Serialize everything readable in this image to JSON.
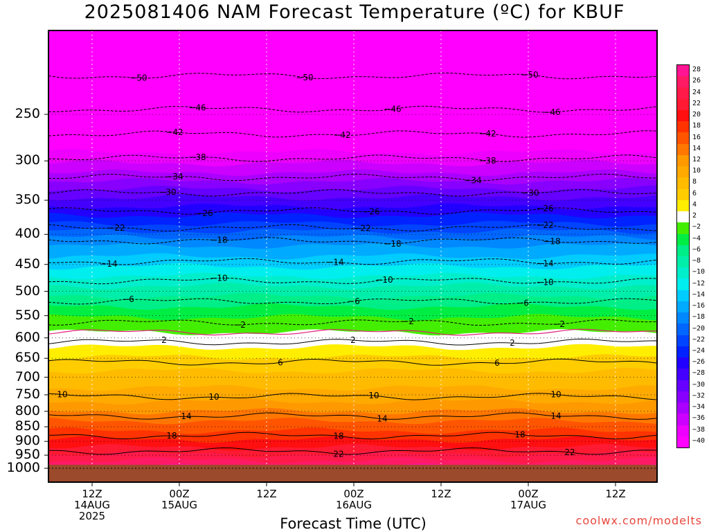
{
  "header": {
    "title": "2025081406 NAM Forecast Temperature (ºC) for KBUF"
  },
  "footer": {
    "xlabel": "Forecast Time (UTC)",
    "credit": "coolwx.com/modelts"
  },
  "colors": {
    "ground": "#9b4a2c",
    "freezing_line": "#e0207a"
  },
  "chart_data": {
    "type": "contour",
    "title": "2025081406 NAM Forecast Temperature (ºC) for KBUF",
    "xlabel": "Forecast Time (UTC)",
    "ylabel": "",
    "y_axis": {
      "scale": "pressure-log",
      "inverted": true,
      "ylim": [
        1000,
        180
      ],
      "ticks": [
        250,
        300,
        350,
        400,
        450,
        500,
        550,
        600,
        650,
        700,
        750,
        800,
        850,
        900,
        950,
        1000
      ]
    },
    "x_axis": {
      "ticks": [
        {
          "label": "12Z",
          "sub": [
            "14AUG",
            "2025"
          ]
        },
        {
          "label": "00Z",
          "sub": [
            "15AUG"
          ]
        },
        {
          "label": "12Z",
          "sub": []
        },
        {
          "label": "00Z",
          "sub": [
            "16AUG"
          ]
        },
        {
          "label": "12Z",
          "sub": []
        },
        {
          "label": "00Z",
          "sub": [
            "17AUG"
          ]
        },
        {
          "label": "12Z",
          "sub": []
        }
      ]
    },
    "grid": true,
    "colorbar": {
      "placement": "right",
      "labels": [
        28,
        26,
        24,
        22,
        20,
        18,
        16,
        14,
        12,
        10,
        8,
        6,
        4,
        2,
        -2,
        -4,
        -6,
        -8,
        -10,
        -12,
        -14,
        -16,
        -18,
        -20,
        -22,
        -24,
        -26,
        -28,
        -30,
        -32,
        -34,
        -36,
        -38,
        -40
      ],
      "colors": [
        "#ff1493",
        "#ff1a66",
        "#ff1a4a",
        "#ff1a33",
        "#ff0f0f",
        "#ff3300",
        "#ff5500",
        "#ff7700",
        "#ff9900",
        "#ffaa00",
        "#ffbb00",
        "#ffcc00",
        "#ffee00",
        "#ffffff",
        "#44ee00",
        "#00ee44",
        "#00ee88",
        "#00eeaa",
        "#00eecc",
        "#00eeee",
        "#00ccff",
        "#00aaff",
        "#0088ff",
        "#0066ff",
        "#0044ff",
        "#0022ff",
        "#2200ff",
        "#4400ff",
        "#6600ff",
        "#8800ff",
        "#aa00ff",
        "#cc00ff",
        "#ee00ff",
        "#ff00ff"
      ]
    },
    "isotherms": [
      {
        "temp": -50,
        "pressure": 215
      },
      {
        "temp": -46,
        "pressure": 245
      },
      {
        "temp": -42,
        "pressure": 270
      },
      {
        "temp": -38,
        "pressure": 297
      },
      {
        "temp": -34,
        "pressure": 320
      },
      {
        "temp": -30,
        "pressure": 340
      },
      {
        "temp": -26,
        "pressure": 365
      },
      {
        "temp": -22,
        "pressure": 390
      },
      {
        "temp": -18,
        "pressure": 410
      },
      {
        "temp": -14,
        "pressure": 445
      },
      {
        "temp": -10,
        "pressure": 480
      },
      {
        "temp": -6,
        "pressure": 520
      },
      {
        "temp": -2,
        "pressure": 565
      },
      {
        "temp": 2,
        "pressure": 610
      },
      {
        "temp": 6,
        "pressure": 660
      },
      {
        "temp": 10,
        "pressure": 755
      },
      {
        "temp": 14,
        "pressure": 815
      },
      {
        "temp": 18,
        "pressure": 880
      },
      {
        "temp": 22,
        "pressure": 935
      }
    ],
    "contour_labels": [
      {
        "text": "50",
        "neg": true
      },
      {
        "text": "46",
        "neg": true
      },
      {
        "text": "42",
        "neg": true
      },
      {
        "text": "38",
        "neg": true
      },
      {
        "text": "34",
        "neg": true
      },
      {
        "text": "30",
        "neg": true
      },
      {
        "text": "26",
        "neg": true
      },
      {
        "text": "22",
        "neg": true
      },
      {
        "text": "18",
        "neg": true
      },
      {
        "text": "14",
        "neg": true
      },
      {
        "text": "10",
        "neg": true
      },
      {
        "text": "6",
        "neg": true
      },
      {
        "text": "2",
        "neg": true
      },
      {
        "text": "2",
        "neg": false
      },
      {
        "text": "6",
        "neg": false
      },
      {
        "text": "10",
        "neg": false
      },
      {
        "text": "14",
        "neg": false
      },
      {
        "text": "18",
        "neg": false
      },
      {
        "text": "22",
        "neg": false
      }
    ]
  }
}
